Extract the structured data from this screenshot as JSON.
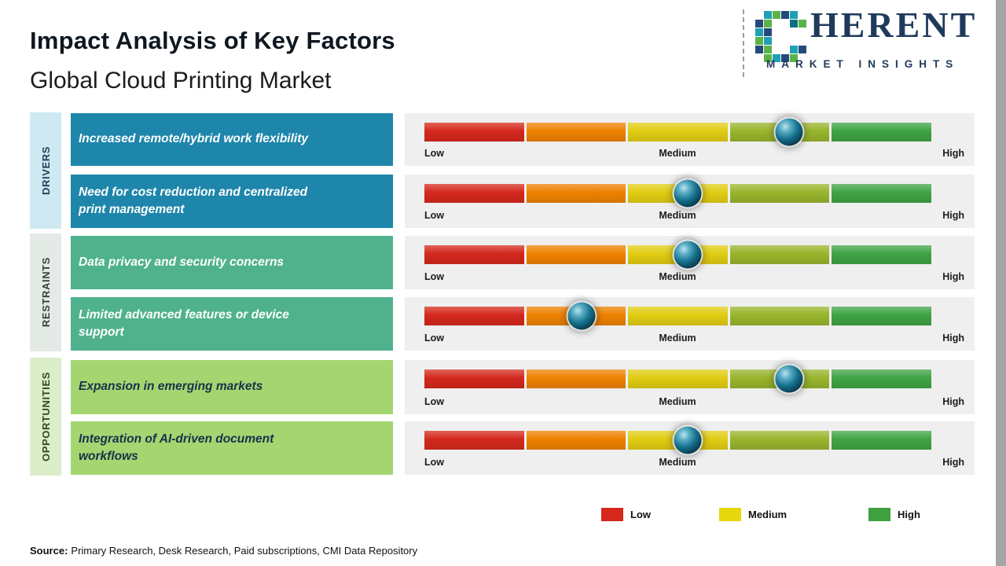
{
  "page": {
    "title": "Impact Analysis of Key Factors",
    "subtitle": "Global Cloud Printing Market",
    "source_label": "Source:",
    "source_text": "Primary Research, Desk Research, Paid subscriptions, CMI Data Repository"
  },
  "logo": {
    "company": "COHERENT",
    "wordmark_rest": "HERENT",
    "tagline": "MARKET INSIGHTS",
    "navy": "#203a5c",
    "teal": "#1fa0b5",
    "green": "#5bb347"
  },
  "scale": {
    "low": "Low",
    "medium": "Medium",
    "high": "High"
  },
  "bars": {
    "panel_color": "#efefef",
    "segments": [
      "#d4281c",
      "#ee8100",
      "#e0cc12",
      "#99b42c",
      "#3fa344"
    ]
  },
  "groups": [
    {
      "label": "DRIVERS",
      "strip_color": "#cfe9f2",
      "box_color": "#1e86ab",
      "text_color": "#ffffff",
      "label_color": "#1d4054",
      "rows": [
        {
          "factor": "Increased remote/hybrid work flexibility",
          "impact_percent": 72,
          "marker_left": "72%"
        },
        {
          "factor": "Need for cost reduction and centralized print management",
          "impact_percent": 52,
          "marker_left": "52%"
        }
      ]
    },
    {
      "label": "RESTRAINTS",
      "strip_color": "#e4eae5",
      "box_color": "#4fb28d",
      "text_color": "#ffffff",
      "label_color": "#33433a",
      "rows": [
        {
          "factor": "Data privacy and security concerns",
          "impact_percent": 52,
          "marker_left": "52%"
        },
        {
          "factor": "Limited advanced features or device support",
          "impact_percent": 31,
          "marker_left": "31%"
        }
      ]
    },
    {
      "label": "OPPORTUNITIES",
      "strip_color": "#dcedc9",
      "box_color": "#a4d571",
      "text_color": "#16324a",
      "label_color": "#2f4a1d",
      "rows": [
        {
          "factor": "Expansion in emerging markets",
          "impact_percent": 72,
          "marker_left": "72%"
        },
        {
          "factor": "Integration of AI-driven document workflows",
          "impact_percent": 52,
          "marker_left": "52%"
        }
      ]
    }
  ],
  "legend": [
    {
      "label": "Low",
      "color": "#d4281c"
    },
    {
      "label": "Medium",
      "color": "#e6d60e"
    },
    {
      "label": "High",
      "color": "#3fa03f"
    }
  ],
  "chart_data": {
    "type": "bar",
    "title": "Impact Analysis of Key Factors",
    "subtitle": "Global Cloud Printing Market",
    "scale_labels": [
      "Low",
      "Medium",
      "High"
    ],
    "scale_range_percent": [
      0,
      100
    ],
    "legend": [
      "Low",
      "Medium",
      "High"
    ],
    "rows": [
      {
        "group": "Drivers",
        "factor": "Increased remote/hybrid work flexibility",
        "impact_percent": 72,
        "impact_level": "Medium-High"
      },
      {
        "group": "Drivers",
        "factor": "Need for cost reduction and centralized print management",
        "impact_percent": 52,
        "impact_level": "Medium"
      },
      {
        "group": "Restraints",
        "factor": "Data privacy and security concerns",
        "impact_percent": 52,
        "impact_level": "Medium"
      },
      {
        "group": "Restraints",
        "factor": "Limited advanced features or device support",
        "impact_percent": 31,
        "impact_level": "Low-Medium"
      },
      {
        "group": "Opportunities",
        "factor": "Expansion in emerging markets",
        "impact_percent": 72,
        "impact_level": "Medium-High"
      },
      {
        "group": "Opportunities",
        "factor": "Integration of AI-driven document workflows",
        "impact_percent": 52,
        "impact_level": "Medium"
      }
    ]
  }
}
